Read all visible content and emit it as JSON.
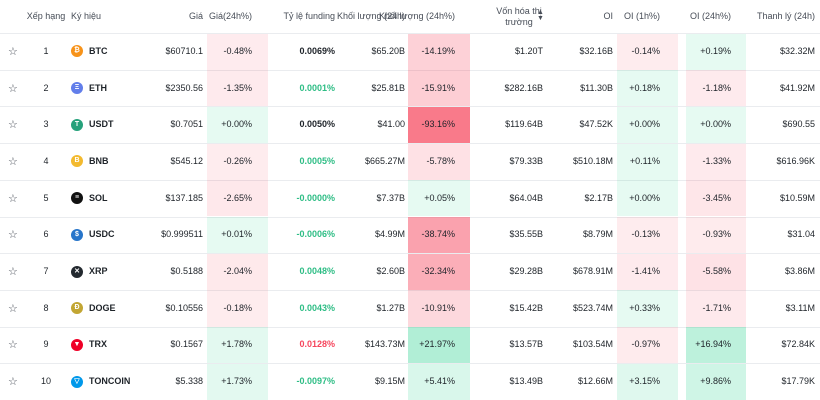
{
  "header": {
    "columns": [
      "Xếp hạng",
      "Ký hiệu",
      "Giá",
      "Giá(24h%)",
      "Tỷ lệ funding",
      "Khối lượng (24h)",
      "Khối lượng (24h%)",
      "Vốn hóa thị trường",
      "OI",
      "OI (1h%)",
      "OI (24h%)",
      "Thanh lý (24h)"
    ]
  },
  "rows": [
    {
      "rank": 1,
      "symbol": "BTC",
      "price": "$60710.1",
      "price_change": "-0.48%",
      "funding": "0.0069%",
      "funding_color": "#1e2329",
      "volume": "$65.20B",
      "volume_change": "-14.19%",
      "market_cap": "$1.20T",
      "oi": "$32.16B",
      "oi_1h": "-0.14%",
      "oi_24h": "+0.19%",
      "liquidation": "$32.32M"
    },
    {
      "rank": 2,
      "symbol": "ETH",
      "price": "$2350.56",
      "price_change": "-1.35%",
      "funding": "0.0001%",
      "funding_color": "#2ebd85",
      "volume": "$25.81B",
      "volume_change": "-15.91%",
      "market_cap": "$282.16B",
      "oi": "$11.30B",
      "oi_1h": "+0.18%",
      "oi_24h": "-1.18%",
      "liquidation": "$41.92M"
    },
    {
      "rank": 3,
      "symbol": "USDT",
      "price": "$0.7051",
      "price_change": "+0.00%",
      "funding": "0.0050%",
      "funding_color": "#1e2329",
      "volume": "$41.00",
      "volume_change": "-93.16%",
      "market_cap": "$119.64B",
      "oi": "$47.52K",
      "oi_1h": "+0.00%",
      "oi_24h": "+0.00%",
      "liquidation": "$690.55"
    },
    {
      "rank": 4,
      "symbol": "BNB",
      "price": "$545.12",
      "price_change": "-0.26%",
      "funding": "0.0005%",
      "funding_color": "#2ebd85",
      "volume": "$665.27M",
      "volume_change": "-5.78%",
      "market_cap": "$79.33B",
      "oi": "$510.18M",
      "oi_1h": "+0.11%",
      "oi_24h": "-1.33%",
      "liquidation": "$616.96K"
    },
    {
      "rank": 5,
      "symbol": "SOL",
      "price": "$137.185",
      "price_change": "-2.65%",
      "funding": "-0.0000%",
      "funding_color": "#2ebd85",
      "volume": "$7.37B",
      "volume_change": "+0.05%",
      "market_cap": "$64.04B",
      "oi": "$2.17B",
      "oi_1h": "+0.00%",
      "oi_24h": "-3.45%",
      "liquidation": "$10.59M"
    },
    {
      "rank": 6,
      "symbol": "USDC",
      "price": "$0.999511",
      "price_change": "+0.01%",
      "funding": "-0.0006%",
      "funding_color": "#2ebd85",
      "volume": "$4.99M",
      "volume_change": "-38.74%",
      "market_cap": "$35.55B",
      "oi": "$8.79M",
      "oi_1h": "-0.13%",
      "oi_24h": "-0.93%",
      "liquidation": "$31.04"
    },
    {
      "rank": 7,
      "symbol": "XRP",
      "price": "$0.5188",
      "price_change": "-2.04%",
      "funding": "0.0048%",
      "funding_color": "#2ebd85",
      "volume": "$2.60B",
      "volume_change": "-32.34%",
      "market_cap": "$29.28B",
      "oi": "$678.91M",
      "oi_1h": "-1.41%",
      "oi_24h": "-5.58%",
      "liquidation": "$3.86M"
    },
    {
      "rank": 8,
      "symbol": "DOGE",
      "price": "$0.10556",
      "price_change": "-0.18%",
      "funding": "0.0043%",
      "funding_color": "#2ebd85",
      "volume": "$1.27B",
      "volume_change": "-10.91%",
      "market_cap": "$15.42B",
      "oi": "$523.74M",
      "oi_1h": "+0.33%",
      "oi_24h": "-1.71%",
      "liquidation": "$3.11M"
    },
    {
      "rank": 9,
      "symbol": "TRX",
      "price": "$0.1567",
      "price_change": "+1.78%",
      "funding": "0.0128%",
      "funding_color": "#f6465d",
      "volume": "$143.73M",
      "volume_change": "+21.97%",
      "market_cap": "$13.57B",
      "oi": "$103.54M",
      "oi_1h": "-0.97%",
      "oi_24h": "+16.94%",
      "liquidation": "$72.84K"
    },
    {
      "rank": 10,
      "symbol": "TONCOIN",
      "price": "$5.338",
      "price_change": "+1.73%",
      "funding": "-0.0097%",
      "funding_color": "#2ebd85",
      "volume": "$9.15M",
      "volume_change": "+5.41%",
      "market_cap": "$13.49B",
      "oi": "$12.66M",
      "oi_1h": "+3.15%",
      "oi_24h": "+9.86%",
      "liquidation": "$17.79K"
    }
  ]
}
